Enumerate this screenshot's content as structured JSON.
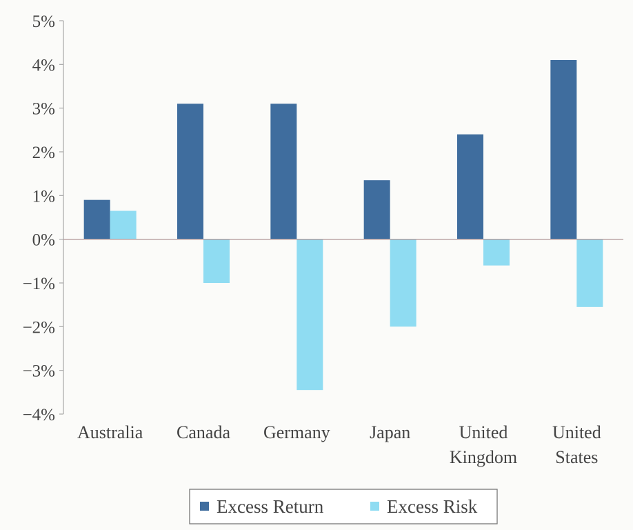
{
  "chart_data": {
    "type": "bar",
    "title": "",
    "xlabel": "",
    "ylabel": "",
    "categories": [
      [
        "Australia"
      ],
      [
        "Canada"
      ],
      [
        "Germany"
      ],
      [
        "Japan"
      ],
      [
        "United",
        "Kingdom"
      ],
      [
        "United",
        "States"
      ]
    ],
    "series": [
      {
        "name": "Excess Return",
        "color": "#3f6d9e",
        "values": [
          0.9,
          3.1,
          3.1,
          1.35,
          2.4,
          4.1
        ]
      },
      {
        "name": "Excess Risk",
        "color": "#8fdcf2",
        "values": [
          0.65,
          -1.0,
          -3.45,
          -2.0,
          -0.6,
          -1.55
        ]
      }
    ],
    "ylim": [
      -4,
      5
    ],
    "yticks": [
      {
        "value": 5,
        "label": "5%"
      },
      {
        "value": 4,
        "label": "4%"
      },
      {
        "value": 3,
        "label": "3%"
      },
      {
        "value": 2,
        "label": "2%"
      },
      {
        "value": 1,
        "label": "1%"
      },
      {
        "value": 0,
        "label": "0%"
      },
      {
        "value": -1,
        "label": "−1%"
      },
      {
        "value": -2,
        "label": "−2%"
      },
      {
        "value": -3,
        "label": "−3%"
      },
      {
        "value": -4,
        "label": "−4%"
      }
    ],
    "grid": false,
    "legend": {
      "placement": "bottom-center",
      "entries": [
        "Excess Return",
        "Excess Risk"
      ]
    }
  }
}
